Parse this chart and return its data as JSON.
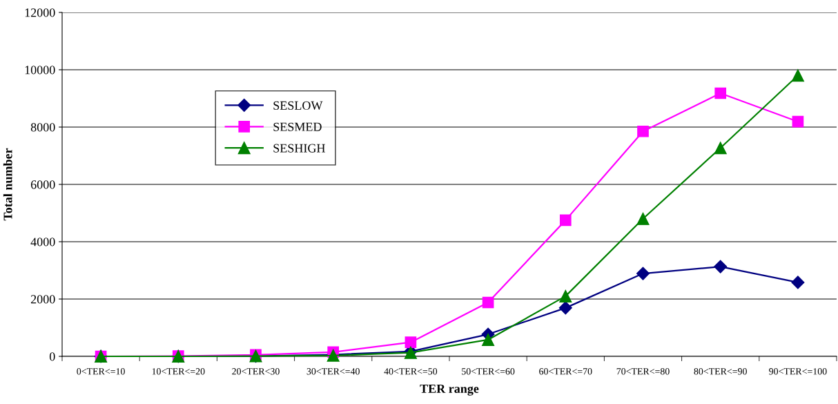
{
  "chart_data": {
    "type": "line",
    "xlabel": "TER range",
    "ylabel": "Total number",
    "categories": [
      "0<TER<=10",
      "10<TER<=20",
      "20<TER<30",
      "30<TER<=40",
      "40<TER<=50",
      "50<TER<=60",
      "60<TER<=70",
      "70<TER<=80",
      "80<TER<=90",
      "90<TER<=100"
    ],
    "series": [
      {
        "name": "SESLOW",
        "color": "#000080",
        "marker": "diamond",
        "values": [
          0,
          0,
          10,
          60,
          170,
          770,
          1690,
          2890,
          3130,
          2580
        ]
      },
      {
        "name": "SESMED",
        "color": "#ff00ff",
        "marker": "square",
        "values": [
          0,
          10,
          50,
          150,
          490,
          1880,
          4750,
          7850,
          9180,
          8190
        ]
      },
      {
        "name": "SESHIGH",
        "color": "#008000",
        "marker": "triangle",
        "values": [
          0,
          0,
          10,
          30,
          130,
          580,
          2100,
          4800,
          7270,
          9800
        ]
      }
    ],
    "ylim": [
      0,
      12000
    ],
    "yticks": [
      0,
      2000,
      4000,
      6000,
      8000,
      10000,
      12000
    ],
    "grid": "y",
    "legend": "top left"
  }
}
